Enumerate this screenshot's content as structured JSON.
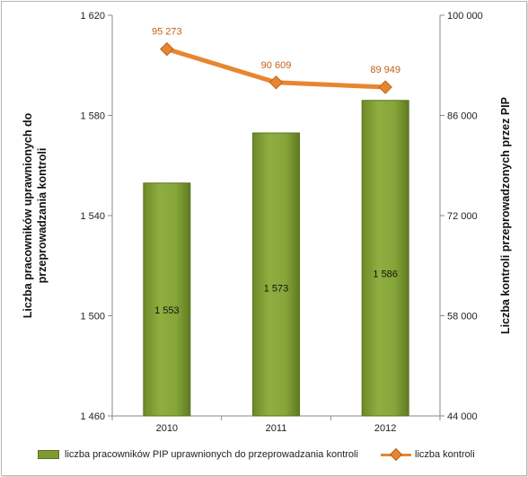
{
  "chart_data": {
    "type": "bar",
    "categories": [
      "2010",
      "2011",
      "2012"
    ],
    "series": [
      {
        "name": "liczba pracowników PIP uprawnionych do przeprowadzania kontroli",
        "type": "bar",
        "axis": "left",
        "values": [
          1553,
          1573,
          1586
        ],
        "labels": [
          "1 553",
          "1 573",
          "1 586"
        ]
      },
      {
        "name": "liczba kontroli",
        "type": "line",
        "axis": "right",
        "values": [
          95273,
          90609,
          89949
        ],
        "labels": [
          "95 273",
          "90 609",
          "89 949"
        ]
      }
    ],
    "y_left": {
      "label": "Liczba pracowników uprawnionych do przeprowadzania kontroli",
      "label_lines": [
        "Liczba pracowników  uprawnionych do",
        "przeprowadzania kontroli"
      ],
      "range": [
        1460,
        1620
      ],
      "ticks": [
        1460,
        1500,
        1540,
        1580,
        1620
      ],
      "tick_labels": [
        "1 460",
        "1 500",
        "1 540",
        "1 580",
        "1 620"
      ]
    },
    "y_right": {
      "label": "Liczba kontroli przeprowadzonych przez PIP",
      "range": [
        44000,
        100000
      ],
      "ticks": [
        44000,
        58000,
        72000,
        86000,
        100000
      ],
      "tick_labels": [
        "44 000",
        "58 000",
        "72 000",
        "86 000",
        "100 000"
      ]
    },
    "grid": false,
    "legend_position": "bottom",
    "colors": {
      "bar": "#7e9b32",
      "bar_dark": "#5a7320",
      "line": "#e8862f",
      "marker": "#e8862f"
    }
  }
}
